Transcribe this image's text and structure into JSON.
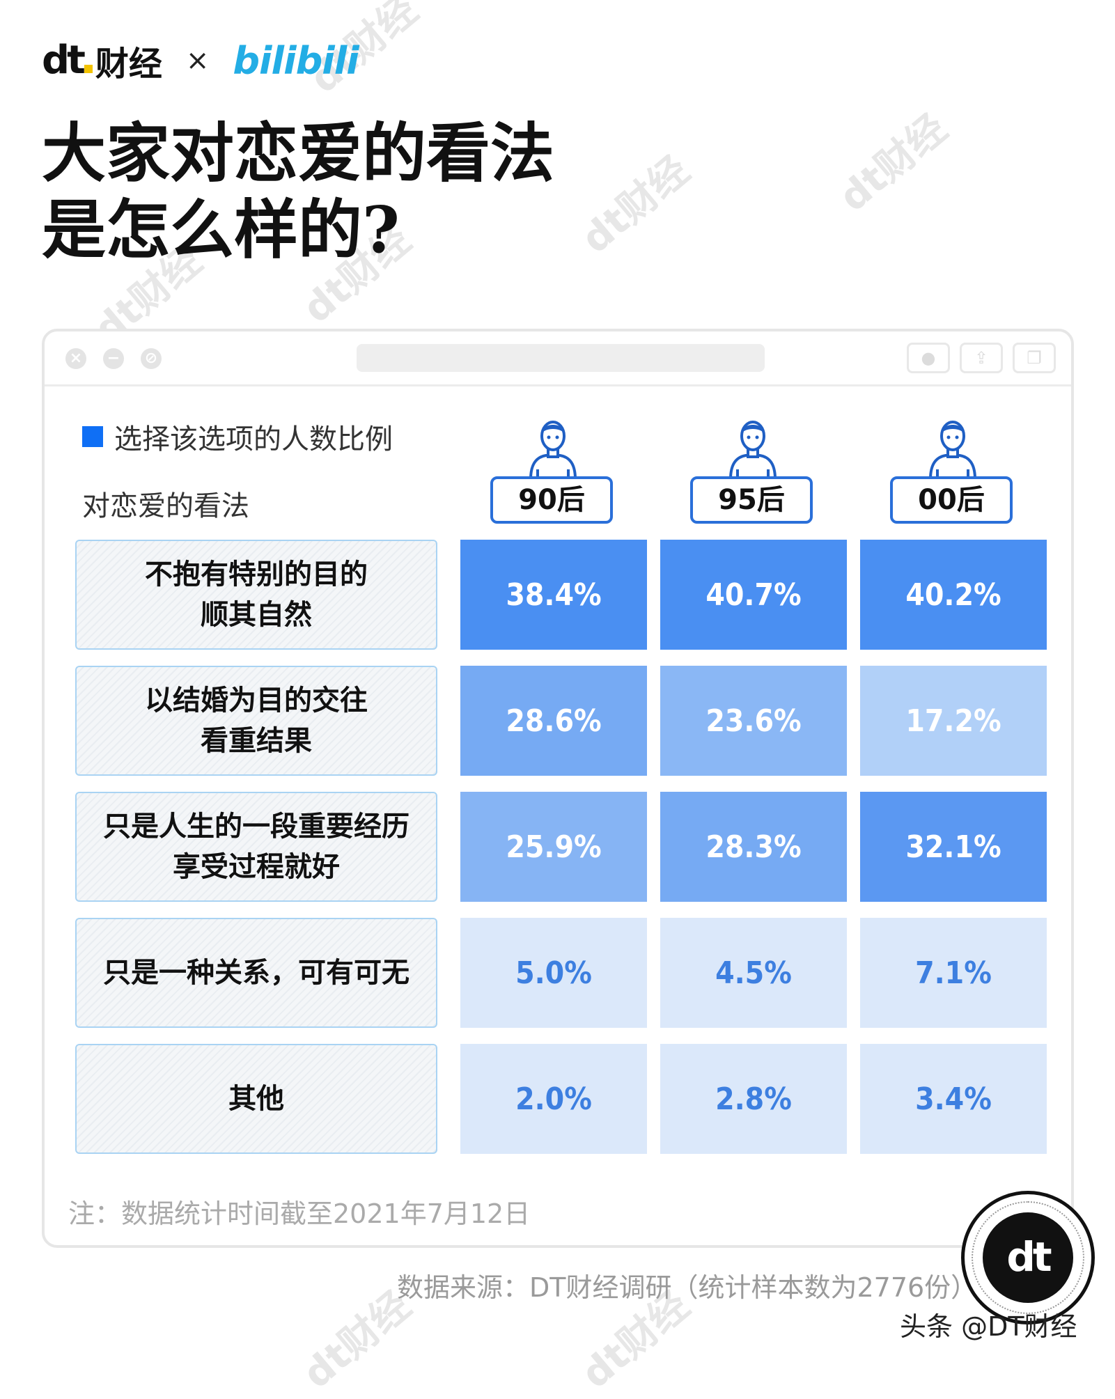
{
  "header": {
    "brand_dt": "dt",
    "brand_cn": "财经",
    "times": "×",
    "partner": "bilibili",
    "title_lines": [
      "大家对恋爱的看法",
      "是怎么样的?"
    ]
  },
  "watermark": "dt财经",
  "window_icons": [
    "close-icon",
    "minimize-icon",
    "disabled-icon",
    "record-icon",
    "share-icon",
    "copy-icon"
  ],
  "legend": {
    "label": "选择该选项的人数比例",
    "color": "#0f6ff5"
  },
  "row_header": "对恋爱的看法",
  "chart_data": {
    "type": "heatmap",
    "title": "大家对恋爱的看法是怎么样的?",
    "columns": [
      "90后",
      "95后",
      "00后"
    ],
    "rows": [
      [
        "不抱有特别的目的",
        "顺其自然"
      ],
      [
        "以结婚为目的交往",
        "看重结果"
      ],
      [
        "只是人生的一段重要经历",
        "享受过程就好"
      ],
      [
        "只是一种关系，可有可无"
      ],
      [
        "其他"
      ]
    ],
    "values": [
      [
        38.4,
        40.7,
        40.2
      ],
      [
        28.6,
        23.6,
        17.2
      ],
      [
        25.9,
        28.3,
        32.1
      ],
      [
        5.0,
        4.5,
        7.1
      ],
      [
        2.0,
        2.8,
        3.4
      ]
    ],
    "labels": [
      [
        "38.4%",
        "40.7%",
        "40.2%"
      ],
      [
        "28.6%",
        "23.6%",
        "17.2%"
      ],
      [
        "25.9%",
        "28.3%",
        "32.1%"
      ],
      [
        "5.0%",
        "4.5%",
        "7.1%"
      ],
      [
        "2.0%",
        "2.8%",
        "3.4%"
      ]
    ],
    "colors": [
      [
        "#4a8ff2",
        "#4a8ff2",
        "#4a8ff2"
      ],
      [
        "#76aaf3",
        "#8ab7f5",
        "#b1d0f8"
      ],
      [
        "#86b4f4",
        "#76aaf3",
        "#5b98f2"
      ],
      [
        "#dbe8fa",
        "#dbe8fa",
        "#dbe8fa"
      ],
      [
        "#dbe8fa",
        "#dbe8fa",
        "#dbe8fa"
      ]
    ],
    "text_colors": [
      [
        "#ffffff",
        "#ffffff",
        "#ffffff"
      ],
      [
        "#ffffff",
        "#ffffff",
        "#ffffff"
      ],
      [
        "#ffffff",
        "#ffffff",
        "#ffffff"
      ],
      [
        "#3d7fe0",
        "#3d7fe0",
        "#3d7fe0"
      ],
      [
        "#3d7fe0",
        "#3d7fe0",
        "#3d7fe0"
      ]
    ]
  },
  "note": "注：数据统计时间截至2021年7月12日",
  "source": "数据来源：DT财经调研（统计样本数为2776份）",
  "seal_text": "dt",
  "credit": "头条 @DT财经"
}
